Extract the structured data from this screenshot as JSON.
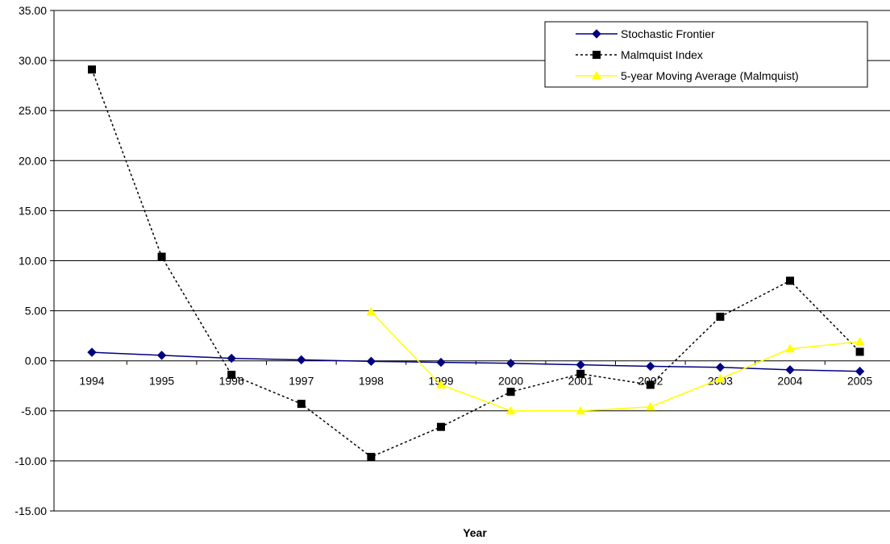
{
  "chart_data": {
    "type": "line",
    "xlabel": "Year",
    "ylabel": "",
    "ylim": [
      -15,
      35
    ],
    "yticks": [
      "35.00",
      "30.00",
      "25.00",
      "20.00",
      "15.00",
      "10.00",
      "5.00",
      "0.00",
      "-5.00",
      "-10.00",
      "-15.00"
    ],
    "categories": [
      "1994",
      "1995",
      "1996",
      "1997",
      "1998",
      "1999",
      "2000",
      "2001",
      "2002",
      "2003",
      "2004",
      "2005"
    ],
    "grid": "horizontal",
    "legend_position": "top-right",
    "series": [
      {
        "name": "Stochastic Frontier",
        "color": "#000080",
        "marker": "diamond",
        "line_style": "solid",
        "values": [
          0.85,
          0.55,
          0.25,
          0.1,
          -0.05,
          -0.15,
          -0.25,
          -0.4,
          -0.55,
          -0.65,
          -0.9,
          -1.05
        ]
      },
      {
        "name": "Malmquist Index",
        "color": "#000000",
        "marker": "square",
        "line_style": "dotted",
        "values": [
          29.1,
          10.4,
          -1.4,
          -4.3,
          -9.6,
          -6.6,
          -3.1,
          -1.3,
          -2.4,
          4.4,
          8.0,
          0.9
        ]
      },
      {
        "name": "5-year Moving Average (Malmquist)",
        "color": "#FFFF00",
        "marker": "triangle",
        "line_style": "solid",
        "values": [
          null,
          null,
          null,
          null,
          4.9,
          -2.4,
          -5.0,
          -5.0,
          -4.6,
          -1.8,
          1.2,
          1.9
        ]
      }
    ]
  }
}
